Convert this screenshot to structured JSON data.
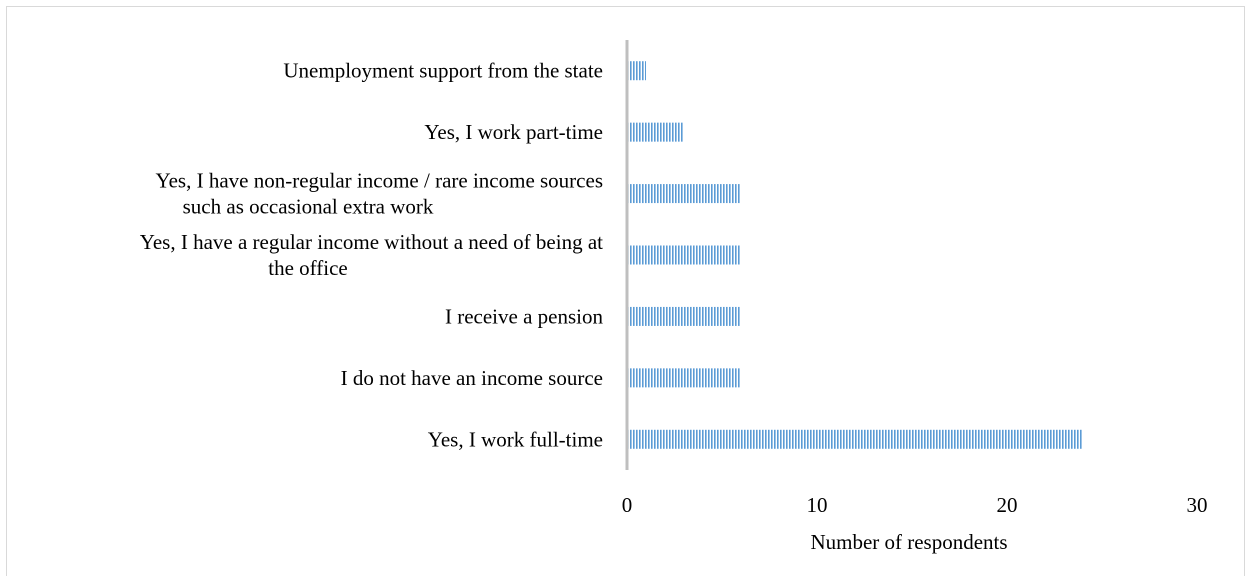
{
  "chart_data": {
    "type": "bar",
    "orientation": "horizontal",
    "categories": [
      [
        "Unemployment support from the state"
      ],
      [
        "Yes, I work part-time"
      ],
      [
        "Yes, I have non-regular income / rare income sources",
        "such as occasional extra work"
      ],
      [
        "Yes, I have a regular income without a need of being at",
        "the office"
      ],
      [
        "I receive a pension"
      ],
      [
        "I do not have an income source"
      ],
      [
        "Yes, I work full-time"
      ]
    ],
    "values": [
      1,
      3,
      6,
      6,
      6,
      6,
      24
    ],
    "xlabel": "Number of respondents",
    "ylabel": "",
    "title": "",
    "xlim": [
      0,
      30
    ],
    "xticks": [
      0,
      10,
      20,
      30
    ],
    "grid": false,
    "bar_color": "#5b9bd5",
    "bar_pattern": "vertical-stripes"
  }
}
